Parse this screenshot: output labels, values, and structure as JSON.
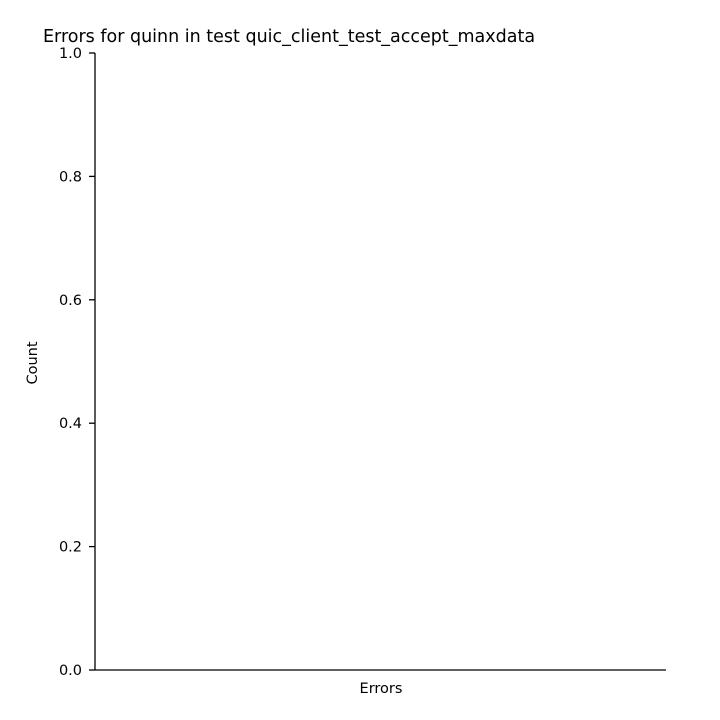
{
  "chart_data": {
    "type": "bar",
    "title": "Errors for quinn in test quic_client_test_accept_maxdata",
    "xlabel": "Errors",
    "ylabel": "Count",
    "categories": [],
    "values": [],
    "ylim": [
      0.0,
      1.0
    ],
    "yticks": [
      "0.0",
      "0.2",
      "0.4",
      "0.6",
      "0.8",
      "1.0"
    ],
    "grid": false,
    "axis_color": "#000000"
  }
}
